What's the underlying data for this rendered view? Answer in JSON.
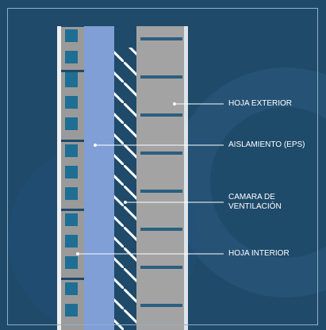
{
  "labels": {
    "hoja_exterior": "HOJA EXTERIOR",
    "aislamiento": "AISLAMIENTO (EPS)",
    "camara": "CAMARA DE\nVENTILACIÓN",
    "hoja_interior": "HOJA INTERIOR"
  },
  "colors": {
    "background": "#1f4a6a",
    "watermark": "#295a7e",
    "insulation": "#7f9fd6",
    "brick": "#9a9a9a",
    "brick_hole": "#1f6e94",
    "air_gap": "#1f4a6a",
    "exterior_leaf": "#a3a3a3",
    "mortar_joint": "#2d5f80",
    "leader_line": "#ffffff"
  }
}
